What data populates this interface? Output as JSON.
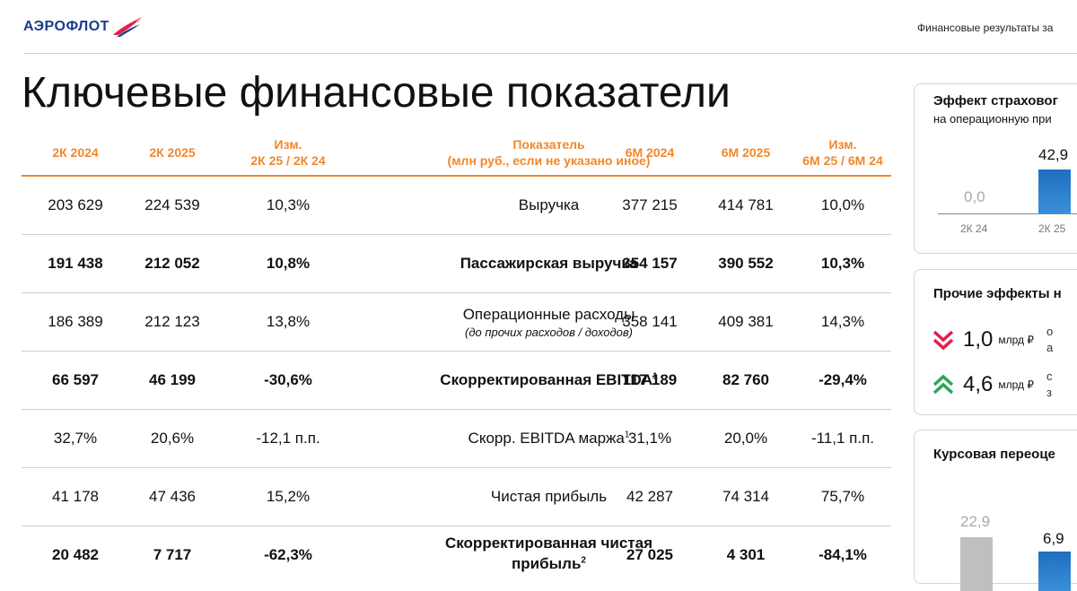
{
  "header": {
    "logo_text": "АЭРОФЛОТ",
    "right_text": "Финансовые результаты за"
  },
  "title": "Ключевые финансовые показатели",
  "table": {
    "columns": [
      "2К 2024",
      "2К 2025",
      "Изм.",
      "2К 25 / 2К 24",
      "Показатель",
      "(млн руб., если не указано иное)",
      "6М 2024",
      "6М 2025",
      "Изм.",
      "6М 25 / 6М 24"
    ],
    "rows": [
      {
        "q24": "203 629",
        "q25": "224 539",
        "qchg": "10,3%",
        "name": "Выручка",
        "sup": "",
        "sub": "",
        "h24": "377 215",
        "h25": "414 781",
        "hchg": "10,0%",
        "bold": false
      },
      {
        "q24": "191 438",
        "q25": "212 052",
        "qchg": "10,8%",
        "name": "Пассажирская выручка",
        "sup": "",
        "sub": "",
        "h24": "354 157",
        "h25": "390 552",
        "hchg": "10,3%",
        "bold": true
      },
      {
        "q24": "186 389",
        "q25": "212 123",
        "qchg": "13,8%",
        "name": "Операционные расходы",
        "sup": "",
        "sub": "(до прочих расходов / доходов)",
        "h24": "358 141",
        "h25": "409 381",
        "hchg": "14,3%",
        "bold": false
      },
      {
        "q24": "66 597",
        "q25": "46 199",
        "qchg": "-30,6%",
        "name": "Скорректированная EBITDA",
        "sup": "1",
        "sub": "",
        "h24": "117 189",
        "h25": "82 760",
        "hchg": "-29,4%",
        "bold": true
      },
      {
        "q24": "32,7%",
        "q25": "20,6%",
        "qchg": "-12,1 п.п.",
        "name": "Скорр. EBITDA маржа",
        "sup": "1",
        "sub": "",
        "h24": "31,1%",
        "h25": "20,0%",
        "hchg": "-11,1 п.п.",
        "bold": false
      },
      {
        "q24": "41 178",
        "q25": "47 436",
        "qchg": "15,2%",
        "name": "Чистая прибыль",
        "sup": "",
        "sub": "",
        "h24": "42 287",
        "h25": "74 314",
        "hchg": "75,7%",
        "bold": false
      },
      {
        "q24": "20 482",
        "q25": "7 717",
        "qchg": "-62,3%",
        "name": "Скорректированная чистая",
        "name2": "прибыль",
        "sup": "2",
        "sub": "",
        "h24": "27 025",
        "h25": "4 301",
        "hchg": "-84,1%",
        "bold": true
      }
    ]
  },
  "panel_insurance": {
    "title": "Эффект страховог",
    "subtitle": "на операционную при",
    "bars": [
      {
        "cat": "2К 24",
        "value": "0,0"
      },
      {
        "cat": "2К 25",
        "value": "42,9"
      }
    ],
    "colors": {
      "bar": "#1f6fbf"
    }
  },
  "panel_other": {
    "title": "Прочие эффекты н",
    "items": [
      {
        "direction": "down",
        "icon": "double-chevron-down-icon",
        "value": "1,0",
        "unit": "млрд ₽",
        "desc1": "о",
        "desc2": "а",
        "color": "#e3204a"
      },
      {
        "direction": "up",
        "icon": "double-chevron-up-icon",
        "value": "4,6",
        "unit": "млрд ₽",
        "desc1": "с",
        "desc2": "з",
        "color": "#2aa55a"
      }
    ]
  },
  "panel_fx": {
    "title": "Курсовая переоце",
    "bars": [
      {
        "value": "22,9"
      },
      {
        "value": "6,9"
      }
    ],
    "colors": {
      "bar_prev": "#bfbfbf",
      "bar_curr": "#1f6fbf"
    }
  },
  "colors": {
    "accent": "#f0882a",
    "brand": "#1a3c8c"
  }
}
